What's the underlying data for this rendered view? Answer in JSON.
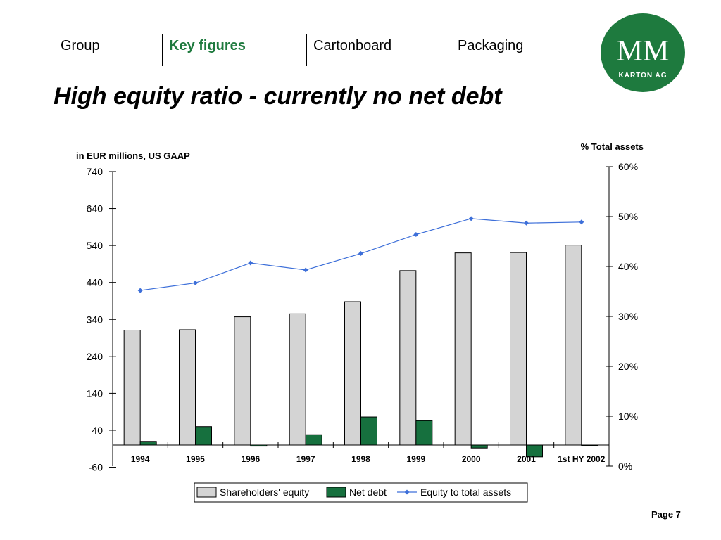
{
  "nav": {
    "tabs": [
      {
        "label": "Group",
        "active": false
      },
      {
        "label": "Key figures",
        "active": true
      },
      {
        "label": "Cartonboard",
        "active": false
      },
      {
        "label": "Packaging",
        "active": false
      }
    ]
  },
  "logo": {
    "text_main": "MM",
    "text_sub": "KARTON AG",
    "color": "#1e7a3e"
  },
  "title": "High equity ratio - currently no net debt",
  "footer": {
    "page": "Page 7"
  },
  "colors": {
    "equity": "#d4d4d4",
    "net_debt": "#16703e",
    "ratio": "#3d6fd9",
    "accent": "#1e7a3e"
  },
  "chart_data": {
    "type": "bar",
    "left_axis_label": "in EUR millions, US GAAP",
    "right_axis_label": "%  Total assets",
    "categories": [
      "1994",
      "1995",
      "1996",
      "1997",
      "1998",
      "1999",
      "2000",
      "2001",
      "1st HY 2002"
    ],
    "ylim": [
      -60,
      740
    ],
    "yticks": [
      -60,
      40,
      140,
      240,
      340,
      440,
      540,
      640,
      740
    ],
    "y2lim": [
      0,
      60
    ],
    "y2ticks": [
      0,
      10,
      20,
      30,
      40,
      50,
      60
    ],
    "y2tick_labels": [
      "0%",
      "10%",
      "20%",
      "30%",
      "40%",
      "50%",
      "60%"
    ],
    "series": [
      {
        "name": "Shareholders' equity",
        "type": "bar",
        "axis": "left",
        "values": [
          311,
          312,
          347,
          355,
          388,
          472,
          520,
          521,
          541
        ]
      },
      {
        "name": "Net debt",
        "type": "bar",
        "axis": "left",
        "values": [
          10,
          50,
          -3,
          28,
          76,
          66,
          -8,
          -32,
          -2
        ]
      },
      {
        "name": "Equity to total assets",
        "type": "line",
        "axis": "right",
        "values": [
          35.2,
          36.7,
          40.7,
          39.3,
          42.6,
          46.4,
          49.6,
          48.7,
          48.9
        ]
      }
    ],
    "legend": "bottom"
  }
}
